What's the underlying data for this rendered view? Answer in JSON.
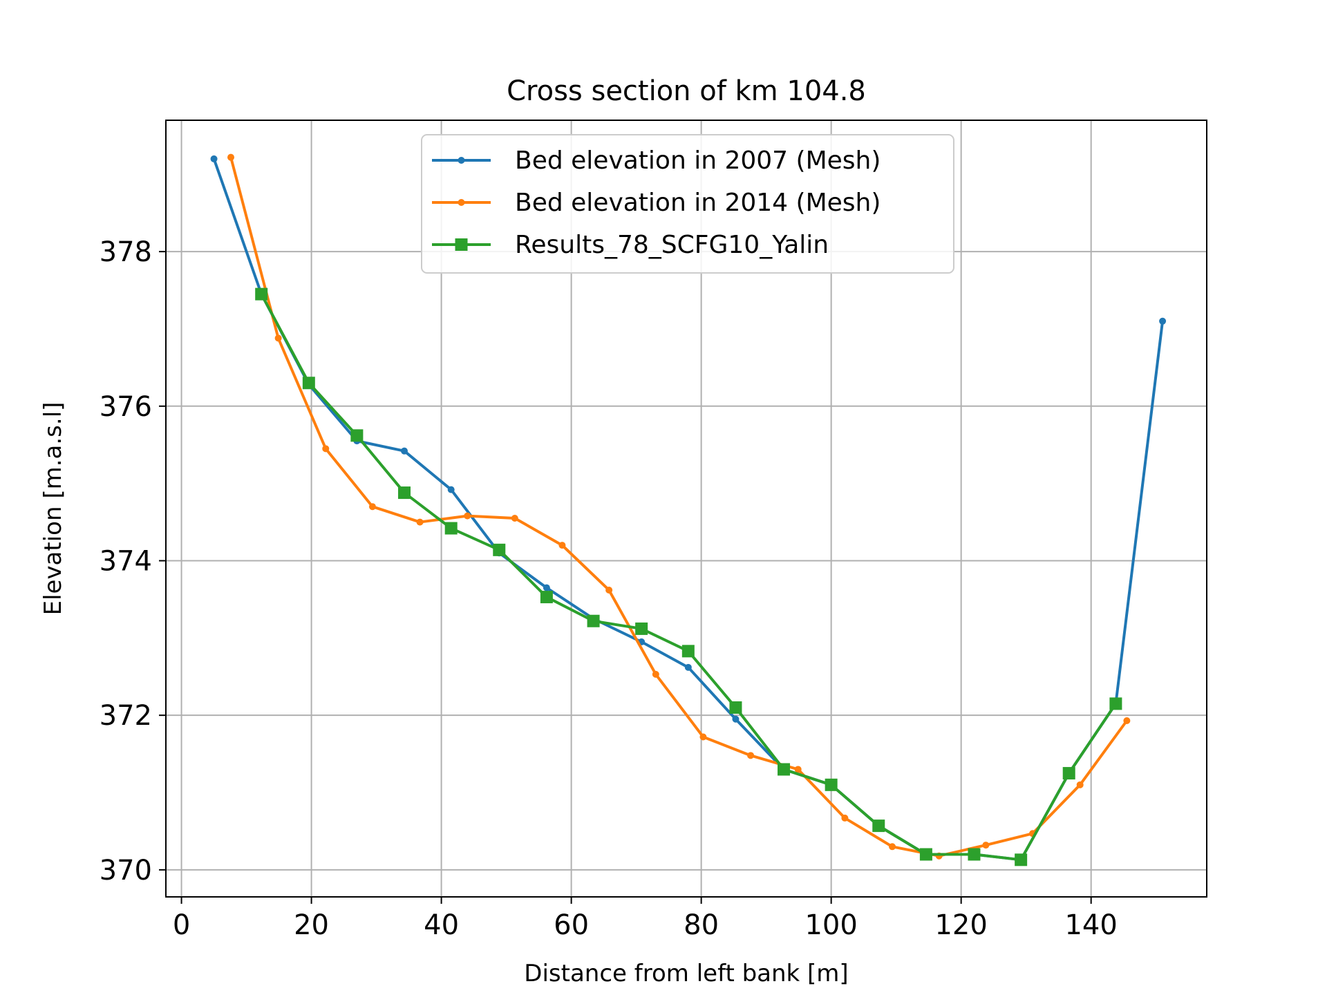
{
  "chart_data": {
    "type": "line",
    "title": "Cross section of km 104.8",
    "xlabel": "Distance from left bank [m]",
    "ylabel": "Elevation [m.a.s.l]",
    "xlim": [
      -2.4,
      157.8
    ],
    "ylim": [
      369.65,
      379.7
    ],
    "xticks": [
      0,
      20,
      40,
      60,
      80,
      100,
      120,
      140
    ],
    "yticks": [
      370,
      372,
      374,
      376,
      378
    ],
    "grid": true,
    "legend_position": "top-center",
    "series": [
      {
        "name": "Bed elevation in 2007 (Mesh)",
        "color": "#1f77b4",
        "marker": "dot",
        "x": [
          5,
          12.3,
          19.6,
          27,
          34.3,
          41.5,
          48.9,
          56.2,
          63.4,
          70.8,
          78,
          85.3,
          92.7,
          100,
          107.3,
          114.6,
          122,
          129.2,
          136.6,
          143.8,
          151
        ],
        "y": [
          379.2,
          377.45,
          376.28,
          375.55,
          375.42,
          374.92,
          374.1,
          373.65,
          373.25,
          372.95,
          372.62,
          371.95,
          371.3,
          371.1,
          370.57,
          370.2,
          370.2,
          370.13,
          371.25,
          372.15,
          377.1
        ]
      },
      {
        "name": "Bed elevation in 2014 (Mesh)",
        "color": "#ff7f0e",
        "marker": "dot",
        "x": [
          7.6,
          14.9,
          22.2,
          29.4,
          36.7,
          44,
          51.3,
          58.6,
          65.8,
          73,
          80.3,
          87.6,
          94.9,
          102.1,
          109.4,
          116.6,
          123.8,
          131,
          138.3,
          145.5
        ],
        "y": [
          379.22,
          376.88,
          375.45,
          374.7,
          374.5,
          374.58,
          374.55,
          374.2,
          373.62,
          372.53,
          371.72,
          371.48,
          371.3,
          370.67,
          370.3,
          370.18,
          370.32,
          370.47,
          371.1,
          371.93
        ]
      },
      {
        "name": "Results_78_SCFG10_Yalin",
        "color": "#2ca02c",
        "marker": "square",
        "x": [
          12.3,
          19.6,
          27,
          34.3,
          41.5,
          48.9,
          56.2,
          63.4,
          70.8,
          78,
          85.3,
          92.7,
          100,
          107.3,
          114.6,
          122,
          129.2,
          136.6,
          143.8
        ],
        "y": [
          377.45,
          376.3,
          375.62,
          374.88,
          374.42,
          374.14,
          373.53,
          373.22,
          373.12,
          372.83,
          372.1,
          371.3,
          371.1,
          370.57,
          370.2,
          370.2,
          370.13,
          371.25,
          372.15
        ]
      }
    ]
  }
}
